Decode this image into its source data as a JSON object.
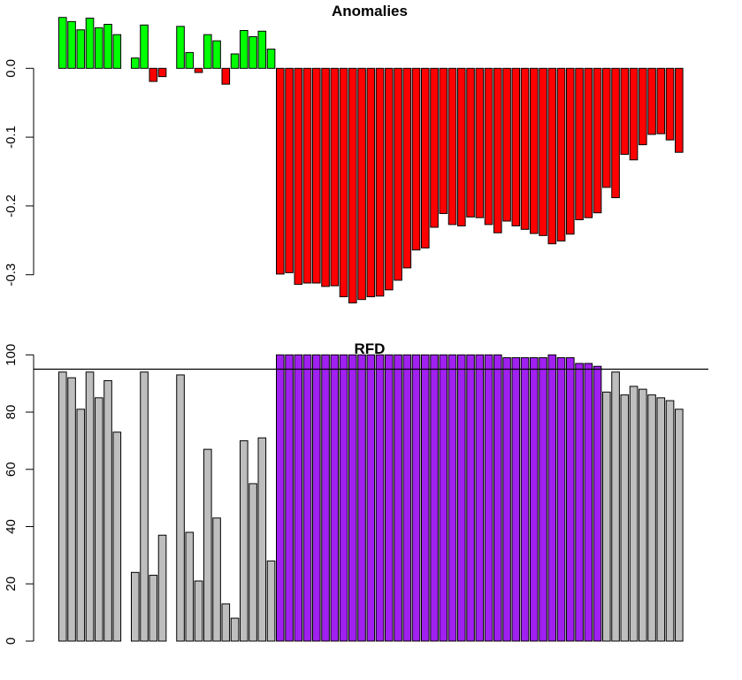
{
  "chart_data": [
    {
      "type": "bar",
      "title": "Anomalies",
      "xlabel": "",
      "ylabel": "",
      "ylim": [
        -0.34,
        0.075
      ],
      "yticks": [
        "0.0",
        "-0.1",
        "-0.2",
        "-0.3"
      ],
      "ytick_values": [
        0.0,
        -0.1,
        -0.2,
        -0.3
      ],
      "positive_color": "#00ff00",
      "negative_color": "#ff0000",
      "values": [
        0.074,
        0.068,
        0.056,
        0.073,
        0.059,
        0.064,
        0.049,
        null,
        0.015,
        0.063,
        -0.019,
        -0.012,
        null,
        0.061,
        0.023,
        -0.006,
        0.049,
        0.04,
        -0.023,
        0.021,
        0.055,
        0.046,
        0.054,
        0.028,
        -0.299,
        -0.297,
        -0.314,
        -0.312,
        -0.312,
        -0.317,
        -0.316,
        -0.332,
        -0.341,
        -0.336,
        -0.332,
        -0.331,
        -0.322,
        -0.308,
        -0.29,
        -0.264,
        -0.261,
        -0.231,
        -0.211,
        -0.227,
        -0.229,
        -0.216,
        -0.217,
        -0.227,
        -0.239,
        -0.222,
        -0.229,
        -0.234,
        -0.24,
        -0.243,
        -0.255,
        -0.251,
        -0.241,
        -0.22,
        -0.217,
        -0.21,
        -0.173,
        -0.188,
        -0.125,
        -0.133,
        -0.111,
        -0.096,
        -0.095,
        -0.104,
        -0.122
      ]
    },
    {
      "type": "bar",
      "title": "RFD",
      "xlabel": "",
      "ylabel": "",
      "ylim": [
        0,
        100
      ],
      "yticks": [
        "0",
        "20",
        "40",
        "60",
        "80",
        "100"
      ],
      "ytick_values": [
        0,
        20,
        40,
        60,
        80,
        100
      ],
      "threshold": 95,
      "above_threshold_color": "#a020f0",
      "below_threshold_color": "#bebebe",
      "values": [
        94,
        92,
        81,
        94,
        85,
        91,
        73,
        null,
        24,
        94,
        23,
        37,
        null,
        93,
        38,
        21,
        67,
        43,
        13,
        8,
        70,
        55,
        71,
        28,
        100,
        100,
        100,
        100,
        100,
        100,
        100,
        100,
        100,
        100,
        100,
        100,
        100,
        100,
        100,
        100,
        100,
        100,
        100,
        100,
        100,
        100,
        100,
        100,
        100,
        99,
        99,
        99,
        99,
        99,
        100,
        99,
        99,
        97,
        97,
        96,
        87,
        94,
        86,
        89,
        88,
        86,
        85,
        84,
        81
      ]
    }
  ]
}
